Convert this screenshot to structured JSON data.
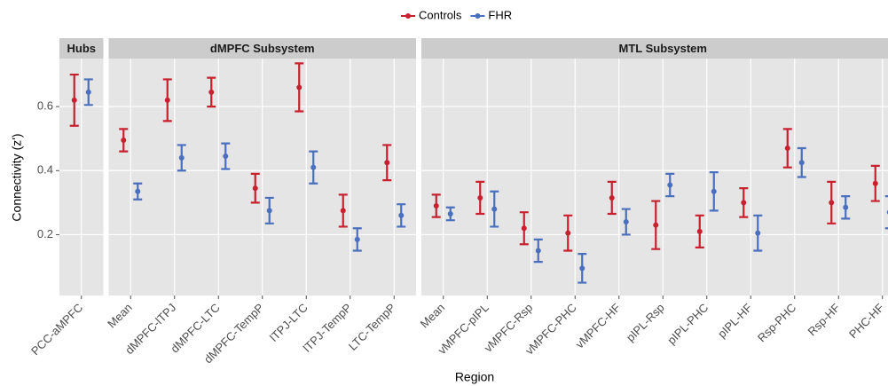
{
  "chart_data": [
    {
      "type": "errorbar",
      "title": "Hubs",
      "y_label": "Connectivity (z')",
      "categories": [
        "PCC-aMPFC"
      ],
      "series": [
        {
          "name": "Controls",
          "color": "#c8202f",
          "values": [
            0.62
          ],
          "errors": [
            0.08
          ]
        },
        {
          "name": "FHR",
          "color": "#4a6fbd",
          "values": [
            0.645
          ],
          "errors": [
            0.04
          ]
        }
      ],
      "ylim": [
        0.01,
        0.75
      ],
      "yticks": [
        0.2,
        0.4,
        0.6
      ],
      "grid": true
    },
    {
      "type": "errorbar",
      "title": "dMPFC Subsystem",
      "x_label": "Region",
      "categories": [
        "Mean",
        "dMPFC-lTPJ",
        "dMPFC-LTC",
        "dMPFC-TempP",
        "lTPJ-LTC",
        "lTPJ-TempP",
        "LTC-TempP"
      ],
      "series": [
        {
          "name": "Controls",
          "color": "#c8202f",
          "values": [
            0.495,
            0.62,
            0.645,
            0.345,
            0.66,
            0.275,
            0.425
          ],
          "errors": [
            0.035,
            0.065,
            0.045,
            0.045,
            0.075,
            0.05,
            0.055
          ]
        },
        {
          "name": "FHR",
          "color": "#4a6fbd",
          "values": [
            0.335,
            0.44,
            0.445,
            0.275,
            0.41,
            0.185,
            0.26
          ],
          "errors": [
            0.025,
            0.04,
            0.04,
            0.04,
            0.05,
            0.035,
            0.035
          ]
        }
      ],
      "ylim": [
        0.01,
        0.75
      ],
      "yticks": [
        0.2,
        0.4,
        0.6
      ],
      "grid": true
    },
    {
      "type": "errorbar",
      "title": "MTL Subsystem",
      "categories": [
        "Mean",
        "vMPFC-pIPL",
        "vMPFC-Rsp",
        "vMPFC-PHC",
        "vMPFC-HF",
        "pIPL-Rsp",
        "pIPL-PHC",
        "pIPL-HF",
        "Rsp-PHC",
        "Rsp-HF",
        "PHC-HF"
      ],
      "series": [
        {
          "name": "Controls",
          "color": "#c8202f",
          "values": [
            0.29,
            0.315,
            0.22,
            0.205,
            0.315,
            0.23,
            0.21,
            0.3,
            0.47,
            0.3,
            0.36
          ],
          "errors": [
            0.035,
            0.05,
            0.05,
            0.055,
            0.05,
            0.075,
            0.05,
            0.045,
            0.06,
            0.065,
            0.055
          ]
        },
        {
          "name": "FHR",
          "color": "#4a6fbd",
          "values": [
            0.265,
            0.28,
            0.15,
            0.095,
            0.24,
            0.355,
            0.335,
            0.205,
            0.425,
            0.285,
            0.27
          ],
          "errors": [
            0.02,
            0.055,
            0.035,
            0.045,
            0.04,
            0.035,
            0.06,
            0.055,
            0.045,
            0.035,
            0.05
          ]
        }
      ],
      "ylim": [
        0.01,
        0.75
      ],
      "yticks": [
        0.2,
        0.4,
        0.6
      ],
      "grid": true
    }
  ]
}
